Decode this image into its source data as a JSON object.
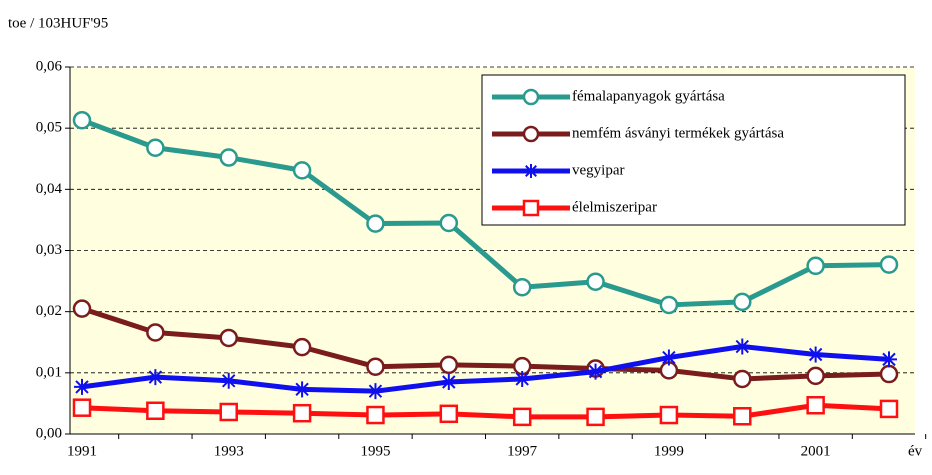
{
  "chart_data": {
    "type": "line",
    "ylabel": "toe / 103HUF'95",
    "xlabel": "év",
    "categories": [
      "1991",
      null,
      "1993",
      null,
      "1995",
      null,
      "1997",
      null,
      "1999",
      null,
      "2001",
      null
    ],
    "series": [
      {
        "name": "fémalapanyagok gyártása",
        "color": "#2a9a8f",
        "marker": "circle",
        "values": [
          0.0513,
          0.0468,
          0.0452,
          0.0431,
          0.0344,
          0.0345,
          0.024,
          0.0249,
          0.0211,
          0.0216,
          0.0275,
          0.0277
        ]
      },
      {
        "name": "nemfém ásványi termékek gyártása",
        "color": "#7b1c1c",
        "marker": "circle",
        "values": [
          0.0205,
          0.0166,
          0.0157,
          0.0142,
          0.011,
          0.0113,
          0.0111,
          0.0107,
          0.0104,
          0.009,
          0.0095,
          0.0098
        ]
      },
      {
        "name": "vegyipar",
        "color": "#1010ee",
        "marker": "star",
        "values": [
          0.0077,
          0.0093,
          0.0087,
          0.0073,
          0.007,
          0.0085,
          0.009,
          0.0102,
          0.0125,
          0.0143,
          0.013,
          0.0122
        ]
      },
      {
        "name": "élelmiszeripar",
        "color": "#ff1010",
        "marker": "square",
        "values": [
          0.0043,
          0.0038,
          0.0036,
          0.0034,
          0.0031,
          0.0033,
          0.0028,
          0.0028,
          0.0031,
          0.0029,
          0.0047,
          0.0041
        ]
      }
    ],
    "ylim": [
      0,
      0.06
    ],
    "yticks": [
      {
        "value": 0,
        "label": "0,00"
      },
      {
        "value": 0.01,
        "label": "0,01"
      },
      {
        "value": 0.02,
        "label": "0,02"
      },
      {
        "value": 0.03,
        "label": "0,03"
      },
      {
        "value": 0.04,
        "label": "0,04"
      },
      {
        "value": 0.05,
        "label": "0,05"
      },
      {
        "value": 0.06,
        "label": "0,06"
      }
    ],
    "grid": true,
    "legend": "upper right",
    "background": "#ffffe0"
  }
}
